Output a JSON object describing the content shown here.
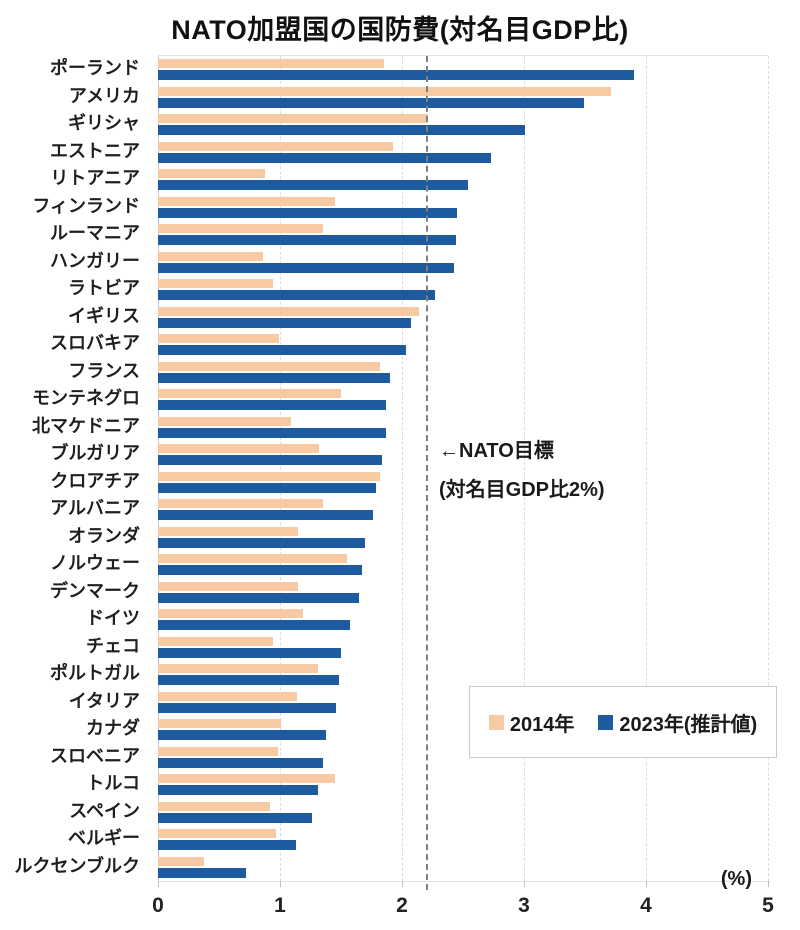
{
  "title": "NATO加盟国の国防費(対名目GDP比)",
  "chart_data": {
    "type": "bar",
    "orientation": "horizontal",
    "title": "NATO加盟国の国防費(対名目GDP比)",
    "categories": [
      "ポーランド",
      "アメリカ",
      "ギリシャ",
      "エストニア",
      "リトアニア",
      "フィンランド",
      "ルーマニア",
      "ハンガリー",
      "ラトビア",
      "イギリス",
      "スロバキア",
      "フランス",
      "モンテネグロ",
      "北マケドニア",
      "ブルガリア",
      "クロアチア",
      "アルバニア",
      "オランダ",
      "ノルウェー",
      "デンマーク",
      "ドイツ",
      "チェコ",
      "ポルトガル",
      "イタリア",
      "カナダ",
      "スロベニア",
      "トルコ",
      "スペイン",
      "ベルギー",
      "ルクセンブルク"
    ],
    "series": [
      {
        "name": "2014年",
        "color": "#F7CAA3",
        "values": [
          1.85,
          3.71,
          2.21,
          1.93,
          0.88,
          1.45,
          1.35,
          0.86,
          0.94,
          2.14,
          0.99,
          1.82,
          1.5,
          1.09,
          1.32,
          1.82,
          1.35,
          1.15,
          1.55,
          1.15,
          1.19,
          0.94,
          1.31,
          1.14,
          1.01,
          0.98,
          1.45,
          0.92,
          0.97,
          0.38
        ]
      },
      {
        "name": "2023年(推計値)",
        "color": "#1E5AA0",
        "values": [
          3.9,
          3.49,
          3.01,
          2.73,
          2.54,
          2.45,
          2.44,
          2.43,
          2.27,
          2.07,
          2.03,
          1.9,
          1.87,
          1.87,
          1.84,
          1.79,
          1.76,
          1.7,
          1.67,
          1.65,
          1.57,
          1.5,
          1.48,
          1.46,
          1.38,
          1.35,
          1.31,
          1.26,
          1.13,
          0.72
        ]
      }
    ],
    "xlim": [
      0,
      5
    ],
    "x_ticks": [
      "0",
      "1",
      "2",
      "3",
      "4",
      "5"
    ],
    "x_unit": "(%)",
    "grid": true,
    "legend_position": "inside-right",
    "target_line": {
      "value_position": 2.2,
      "label_line1": "←NATO目標",
      "label_line2": "(対名目GDP比2%)"
    },
    "colors": {
      "grid": "#dcdcdc",
      "axis": "#c9c9c9",
      "target_dash": "#7f7f7f",
      "text": "#1a1a1a"
    }
  }
}
